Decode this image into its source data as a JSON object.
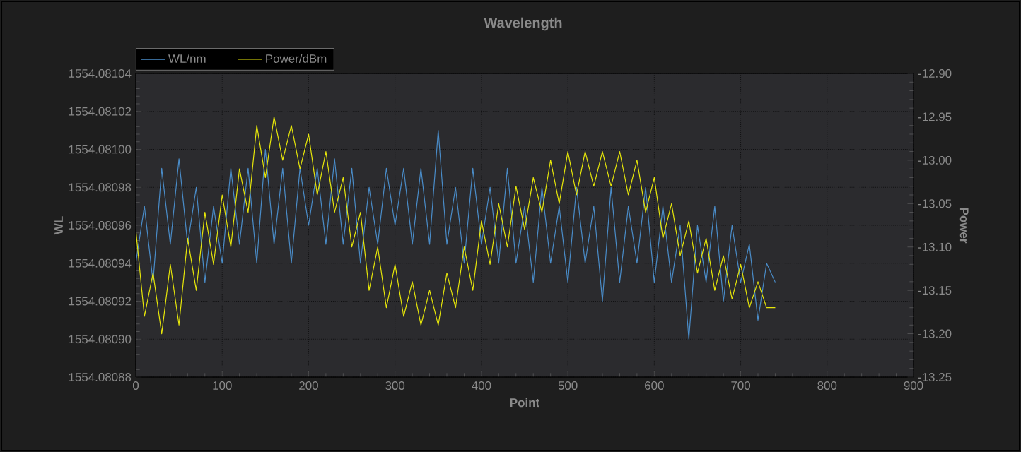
{
  "chart_data": {
    "type": "line",
    "title": "Wavelength",
    "xlabel": "Point",
    "ylabel": "WL",
    "y2label": "Power",
    "x": [
      0,
      10,
      20,
      30,
      40,
      50,
      60,
      70,
      80,
      90,
      100,
      110,
      120,
      130,
      140,
      150,
      160,
      170,
      180,
      190,
      200,
      210,
      220,
      230,
      240,
      250,
      260,
      270,
      280,
      290,
      300,
      310,
      320,
      330,
      340,
      350,
      360,
      370,
      380,
      390,
      400,
      410,
      420,
      430,
      440,
      450,
      460,
      470,
      480,
      490,
      500,
      510,
      520,
      530,
      540,
      550,
      560,
      570,
      580,
      590,
      600,
      610,
      620,
      630,
      640,
      650,
      660,
      670,
      680,
      690,
      700,
      710,
      720,
      730,
      740
    ],
    "series": [
      {
        "name": "WL/nm",
        "color": "#4a8cc8",
        "values": [
          1554.08094,
          1554.08097,
          1554.08093,
          1554.08099,
          1554.08095,
          1554.080995,
          1554.08095,
          1554.08098,
          1554.08093,
          1554.08097,
          1554.08094,
          1554.08099,
          1554.08095,
          1554.08099,
          1554.08094,
          1554.081,
          1554.08095,
          1554.08099,
          1554.08094,
          1554.08099,
          1554.08096,
          1554.08099,
          1554.08095,
          1554.080995,
          1554.08095,
          1554.08099,
          1554.08094,
          1554.08098,
          1554.08095,
          1554.08099,
          1554.08096,
          1554.08099,
          1554.08095,
          1554.08099,
          1554.08095,
          1554.08101,
          1554.08095,
          1554.08098,
          1554.08094,
          1554.08099,
          1554.08095,
          1554.08098,
          1554.08094,
          1554.08099,
          1554.08094,
          1554.08097,
          1554.08093,
          1554.08098,
          1554.08094,
          1554.08097,
          1554.08093,
          1554.08098,
          1554.08094,
          1554.08097,
          1554.08092,
          1554.08098,
          1554.08093,
          1554.08097,
          1554.08094,
          1554.08098,
          1554.08093,
          1554.08097,
          1554.08093,
          1554.08096,
          1554.0809,
          1554.08096,
          1554.08093,
          1554.08097,
          1554.08092,
          1554.08096,
          1554.08093,
          1554.08095,
          1554.08091,
          1554.08094,
          1554.08093
        ]
      },
      {
        "name": "Power/dBm",
        "color": "#e6e60a",
        "axis": "y2",
        "values": [
          -13.08,
          -13.18,
          -13.13,
          -13.2,
          -13.12,
          -13.19,
          -13.09,
          -13.15,
          -13.06,
          -13.12,
          -13.04,
          -13.1,
          -13.01,
          -13.06,
          -12.96,
          -13.02,
          -12.95,
          -13.0,
          -12.96,
          -13.01,
          -12.97,
          -13.04,
          -12.99,
          -13.06,
          -13.02,
          -13.1,
          -13.06,
          -13.15,
          -13.1,
          -13.17,
          -13.12,
          -13.18,
          -13.14,
          -13.19,
          -13.15,
          -13.19,
          -13.13,
          -13.17,
          -13.1,
          -13.15,
          -13.07,
          -13.12,
          -13.05,
          -13.1,
          -13.03,
          -13.08,
          -13.02,
          -13.06,
          -13.0,
          -13.05,
          -12.99,
          -13.04,
          -12.99,
          -13.03,
          -12.99,
          -13.03,
          -12.99,
          -13.04,
          -13.0,
          -13.06,
          -13.02,
          -13.09,
          -13.05,
          -13.11,
          -13.07,
          -13.13,
          -13.09,
          -13.15,
          -13.11,
          -13.16,
          -13.12,
          -13.17,
          -13.14,
          -13.17,
          -13.17
        ]
      }
    ],
    "xlim": [
      0,
      900
    ],
    "xticks": [
      0,
      100,
      200,
      300,
      400,
      500,
      600,
      700,
      800,
      900
    ],
    "ylim": [
      1554.08088,
      1554.08104
    ],
    "yticks": [
      1554.08088,
      {
        "value": 1554.0809,
        "label": "1554.08090"
      },
      1554.08092,
      1554.08094,
      1554.08096,
      1554.08098,
      {
        "value": 1554.081,
        "label": "1554.08100"
      },
      1554.08102,
      1554.08104
    ],
    "y2lim": [
      -13.25,
      -12.9
    ],
    "y2ticks": [
      -13.25,
      {
        "value": -13.2,
        "label": "-13.20"
      },
      -13.15,
      {
        "value": -13.1,
        "label": "-13.10"
      },
      -13.05,
      {
        "value": -13.0,
        "label": "-13.00"
      },
      -12.95,
      {
        "value": -12.9,
        "label": "-12.90"
      }
    ],
    "grid": true,
    "legend": "top left"
  }
}
